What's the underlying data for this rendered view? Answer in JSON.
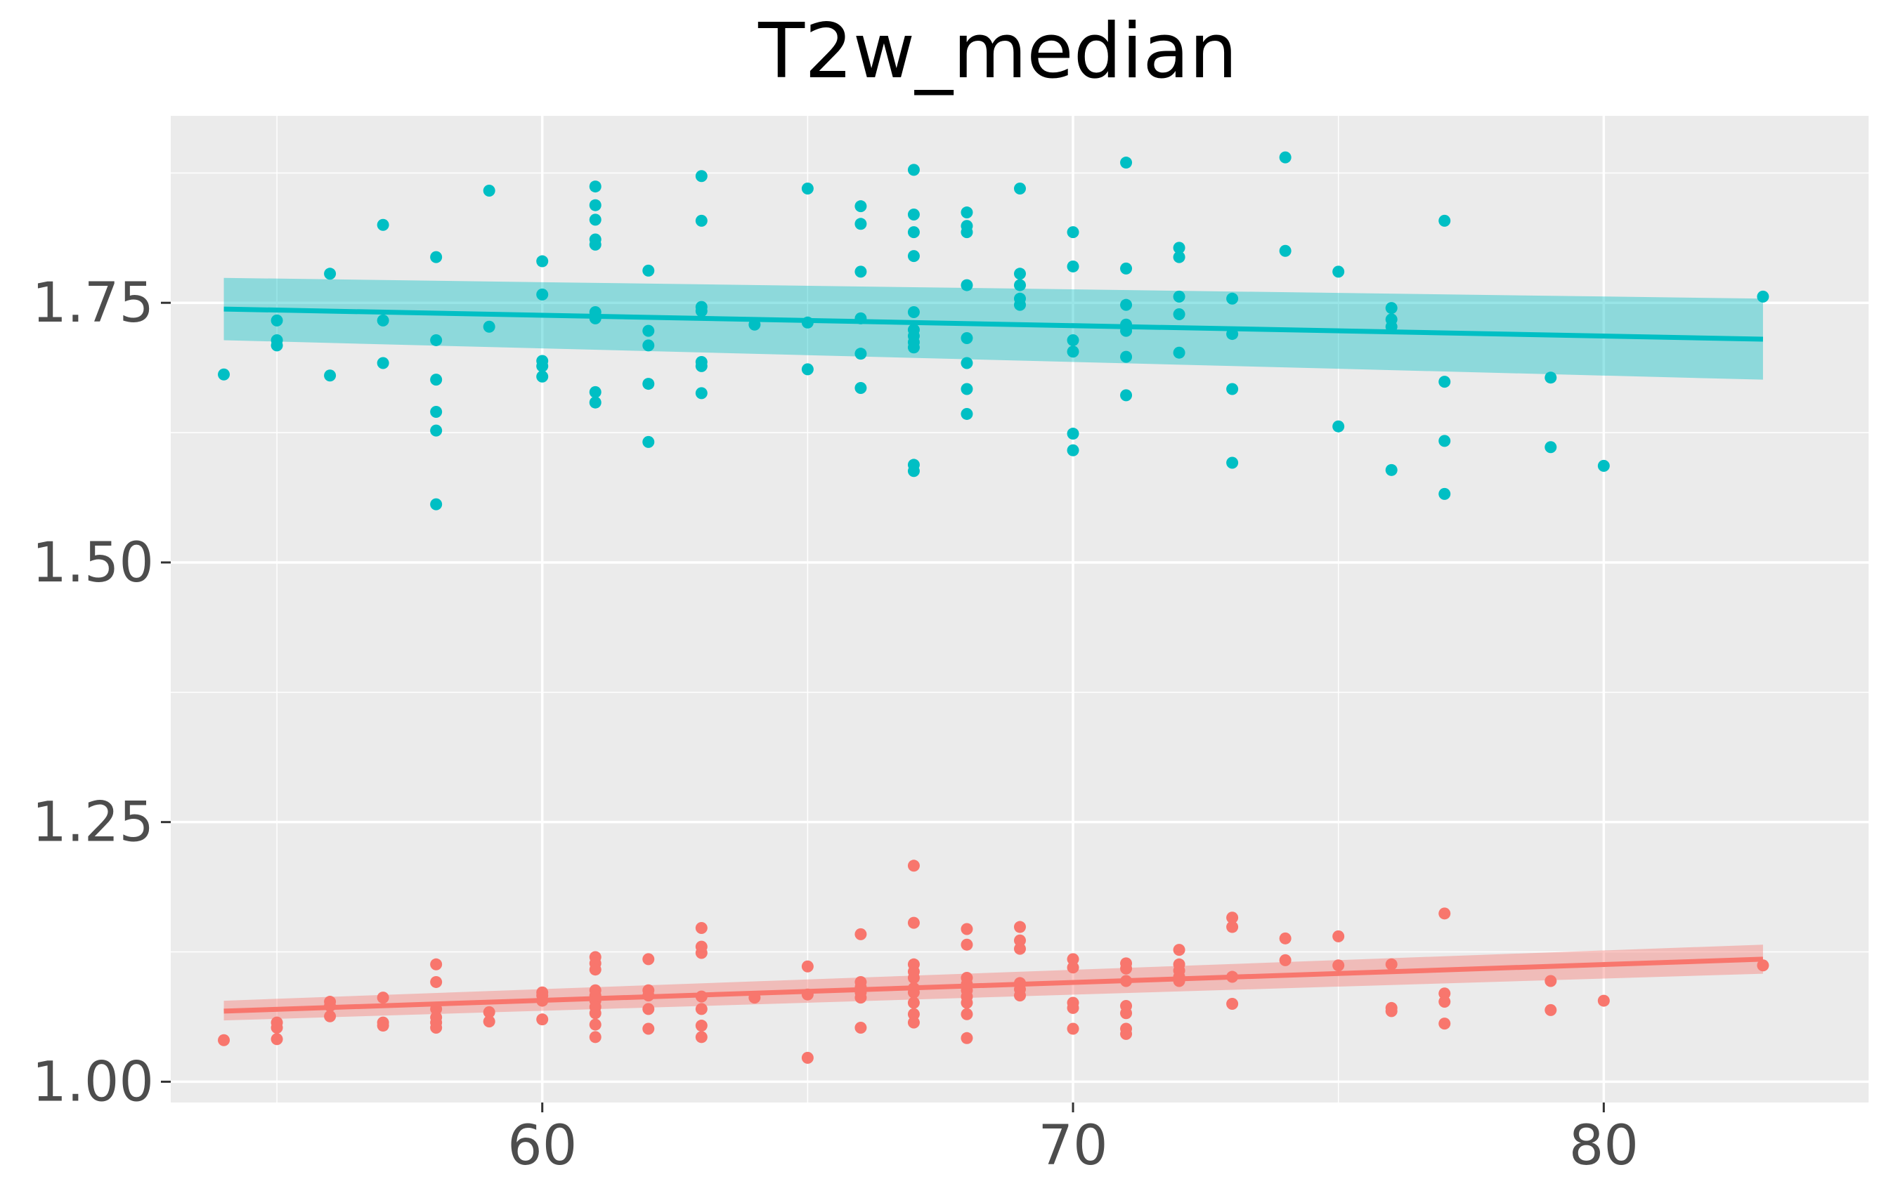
{
  "chart_data": {
    "type": "scatter",
    "title": "T2w_median",
    "xlabel": "",
    "ylabel": "",
    "xlim": [
      53,
      85
    ],
    "ylim": [
      0.98,
      1.93
    ],
    "x_ticks": [
      60,
      70,
      80
    ],
    "x_tick_labels": [
      "60",
      "70",
      "80"
    ],
    "y_ticks": [
      1.0,
      1.25,
      1.5,
      1.75
    ],
    "y_tick_labels": [
      "1.00",
      "1.25",
      "1.50",
      "1.75"
    ],
    "grid": true,
    "legend": "none",
    "colors": {
      "panel": "#ebebeb",
      "grid": "#ffffff",
      "series_a": "#00bfc4",
      "series_b": "#f8766d",
      "tick": "#333333"
    },
    "series": [
      {
        "color": "#00bfc4",
        "points": [
          [
            54,
            1.681
          ],
          [
            55,
            1.733
          ],
          [
            55,
            1.714
          ],
          [
            55,
            1.709
          ],
          [
            56,
            1.778
          ],
          [
            56,
            1.68
          ],
          [
            57,
            1.825
          ],
          [
            57,
            1.733
          ],
          [
            57,
            1.692
          ],
          [
            58,
            1.794
          ],
          [
            58,
            1.714
          ],
          [
            58,
            1.676
          ],
          [
            58,
            1.645
          ],
          [
            58,
            1.627
          ],
          [
            58,
            1.556
          ],
          [
            59,
            1.858
          ],
          [
            59,
            1.727
          ],
          [
            60,
            1.79
          ],
          [
            60,
            1.758
          ],
          [
            60,
            1.694
          ],
          [
            60,
            1.689
          ],
          [
            60,
            1.679
          ],
          [
            61,
            1.862
          ],
          [
            61,
            1.844
          ],
          [
            61,
            1.83
          ],
          [
            61,
            1.811
          ],
          [
            61,
            1.806
          ],
          [
            61,
            1.741
          ],
          [
            61,
            1.735
          ],
          [
            61,
            1.664
          ],
          [
            61,
            1.654
          ],
          [
            62,
            1.781
          ],
          [
            62,
            1.723
          ],
          [
            62,
            1.709
          ],
          [
            62,
            1.672
          ],
          [
            62,
            1.616
          ],
          [
            63,
            1.872
          ],
          [
            63,
            1.829
          ],
          [
            63,
            1.746
          ],
          [
            63,
            1.742
          ],
          [
            63,
            1.693
          ],
          [
            63,
            1.689
          ],
          [
            63,
            1.663
          ],
          [
            64,
            1.729
          ],
          [
            65,
            1.86
          ],
          [
            65,
            1.731
          ],
          [
            65,
            1.686
          ],
          [
            66,
            1.843
          ],
          [
            66,
            1.826
          ],
          [
            66,
            1.78
          ],
          [
            66,
            1.735
          ],
          [
            66,
            1.701
          ],
          [
            66,
            1.668
          ],
          [
            67,
            1.878
          ],
          [
            67,
            1.835
          ],
          [
            67,
            1.818
          ],
          [
            67,
            1.795
          ],
          [
            67,
            1.741
          ],
          [
            67,
            1.724
          ],
          [
            67,
            1.718
          ],
          [
            67,
            1.712
          ],
          [
            67,
            1.707
          ],
          [
            67,
            1.594
          ],
          [
            67,
            1.588
          ],
          [
            68,
            1.837
          ],
          [
            68,
            1.824
          ],
          [
            68,
            1.818
          ],
          [
            68,
            1.767
          ],
          [
            68,
            1.716
          ],
          [
            68,
            1.692
          ],
          [
            68,
            1.667
          ],
          [
            68,
            1.643
          ],
          [
            69,
            1.86
          ],
          [
            69,
            1.778
          ],
          [
            69,
            1.767
          ],
          [
            69,
            1.754
          ],
          [
            69,
            1.748
          ],
          [
            70,
            1.818
          ],
          [
            70,
            1.785
          ],
          [
            70,
            1.714
          ],
          [
            70,
            1.703
          ],
          [
            70,
            1.624
          ],
          [
            70,
            1.608
          ],
          [
            71,
            1.885
          ],
          [
            71,
            1.783
          ],
          [
            71,
            1.748
          ],
          [
            71,
            1.729
          ],
          [
            71,
            1.723
          ],
          [
            71,
            1.698
          ],
          [
            71,
            1.661
          ],
          [
            72,
            1.803
          ],
          [
            72,
            1.794
          ],
          [
            72,
            1.756
          ],
          [
            72,
            1.739
          ],
          [
            72,
            1.702
          ],
          [
            73,
            1.754
          ],
          [
            73,
            1.72
          ],
          [
            73,
            1.667
          ],
          [
            73,
            1.596
          ],
          [
            74,
            1.89
          ],
          [
            74,
            1.8
          ],
          [
            75,
            1.78
          ],
          [
            75,
            1.631
          ],
          [
            76,
            1.745
          ],
          [
            76,
            1.734
          ],
          [
            76,
            1.727
          ],
          [
            76,
            1.589
          ],
          [
            77,
            1.829
          ],
          [
            77,
            1.674
          ],
          [
            77,
            1.617
          ],
          [
            77,
            1.566
          ],
          [
            79,
            1.678
          ],
          [
            79,
            1.611
          ],
          [
            80,
            1.593
          ],
          [
            83,
            1.756
          ]
        ],
        "fit": {
          "x": [
            54,
            83
          ],
          "y": [
            1.744,
            1.715
          ],
          "lower": [
            1.714,
            1.676
          ],
          "upper": [
            1.774,
            1.754
          ]
        }
      },
      {
        "color": "#f8766d",
        "points": [
          [
            54,
            1.04
          ],
          [
            55,
            1.057
          ],
          [
            55,
            1.052
          ],
          [
            55,
            1.041
          ],
          [
            56,
            1.077
          ],
          [
            56,
            1.073
          ],
          [
            56,
            1.063
          ],
          [
            57,
            1.081
          ],
          [
            57,
            1.057
          ],
          [
            57,
            1.054
          ],
          [
            58,
            1.113
          ],
          [
            58,
            1.096
          ],
          [
            58,
            1.07
          ],
          [
            58,
            1.062
          ],
          [
            58,
            1.057
          ],
          [
            58,
            1.052
          ],
          [
            59,
            1.067
          ],
          [
            59,
            1.058
          ],
          [
            60,
            1.086
          ],
          [
            60,
            1.083
          ],
          [
            60,
            1.078
          ],
          [
            60,
            1.06
          ],
          [
            61,
            1.12
          ],
          [
            61,
            1.114
          ],
          [
            61,
            1.108
          ],
          [
            61,
            1.088
          ],
          [
            61,
            1.083
          ],
          [
            61,
            1.078
          ],
          [
            61,
            1.072
          ],
          [
            61,
            1.066
          ],
          [
            61,
            1.055
          ],
          [
            61,
            1.043
          ],
          [
            62,
            1.118
          ],
          [
            62,
            1.088
          ],
          [
            62,
            1.083
          ],
          [
            62,
            1.07
          ],
          [
            62,
            1.051
          ],
          [
            63,
            1.148
          ],
          [
            63,
            1.13
          ],
          [
            63,
            1.124
          ],
          [
            63,
            1.082
          ],
          [
            63,
            1.07
          ],
          [
            63,
            1.054
          ],
          [
            63,
            1.043
          ],
          [
            64,
            1.081
          ],
          [
            65,
            1.111
          ],
          [
            65,
            1.084
          ],
          [
            65,
            1.023
          ],
          [
            66,
            1.142
          ],
          [
            66,
            1.096
          ],
          [
            66,
            1.091
          ],
          [
            66,
            1.086
          ],
          [
            66,
            1.081
          ],
          [
            66,
            1.052
          ],
          [
            67,
            1.208
          ],
          [
            67,
            1.153
          ],
          [
            67,
            1.113
          ],
          [
            67,
            1.106
          ],
          [
            67,
            1.1
          ],
          [
            67,
            1.09
          ],
          [
            67,
            1.086
          ],
          [
            67,
            1.076
          ],
          [
            67,
            1.065
          ],
          [
            67,
            1.057
          ],
          [
            68,
            1.147
          ],
          [
            68,
            1.132
          ],
          [
            68,
            1.1
          ],
          [
            68,
            1.094
          ],
          [
            68,
            1.088
          ],
          [
            68,
            1.082
          ],
          [
            68,
            1.076
          ],
          [
            68,
            1.065
          ],
          [
            68,
            1.042
          ],
          [
            69,
            1.149
          ],
          [
            69,
            1.136
          ],
          [
            69,
            1.128
          ],
          [
            69,
            1.095
          ],
          [
            69,
            1.089
          ],
          [
            69,
            1.083
          ],
          [
            70,
            1.118
          ],
          [
            70,
            1.11
          ],
          [
            70,
            1.076
          ],
          [
            70,
            1.071
          ],
          [
            70,
            1.051
          ],
          [
            71,
            1.114
          ],
          [
            71,
            1.109
          ],
          [
            71,
            1.097
          ],
          [
            71,
            1.073
          ],
          [
            71,
            1.066
          ],
          [
            71,
            1.051
          ],
          [
            71,
            1.046
          ],
          [
            72,
            1.127
          ],
          [
            72,
            1.113
          ],
          [
            72,
            1.107
          ],
          [
            72,
            1.101
          ],
          [
            72,
            1.097
          ],
          [
            73,
            1.158
          ],
          [
            73,
            1.149
          ],
          [
            73,
            1.101
          ],
          [
            73,
            1.075
          ],
          [
            74,
            1.138
          ],
          [
            74,
            1.117
          ],
          [
            75,
            1.14
          ],
          [
            75,
            1.112
          ],
          [
            76,
            1.113
          ],
          [
            76,
            1.071
          ],
          [
            76,
            1.068
          ],
          [
            77,
            1.162
          ],
          [
            77,
            1.085
          ],
          [
            77,
            1.077
          ],
          [
            77,
            1.056
          ],
          [
            79,
            1.097
          ],
          [
            79,
            1.069
          ],
          [
            80,
            1.078
          ],
          [
            83,
            1.112
          ]
        ],
        "fit": {
          "x": [
            54,
            83
          ],
          "y": [
            1.068,
            1.118
          ],
          "lower": [
            1.059,
            1.104
          ],
          "upper": [
            1.078,
            1.132
          ]
        }
      }
    ]
  }
}
